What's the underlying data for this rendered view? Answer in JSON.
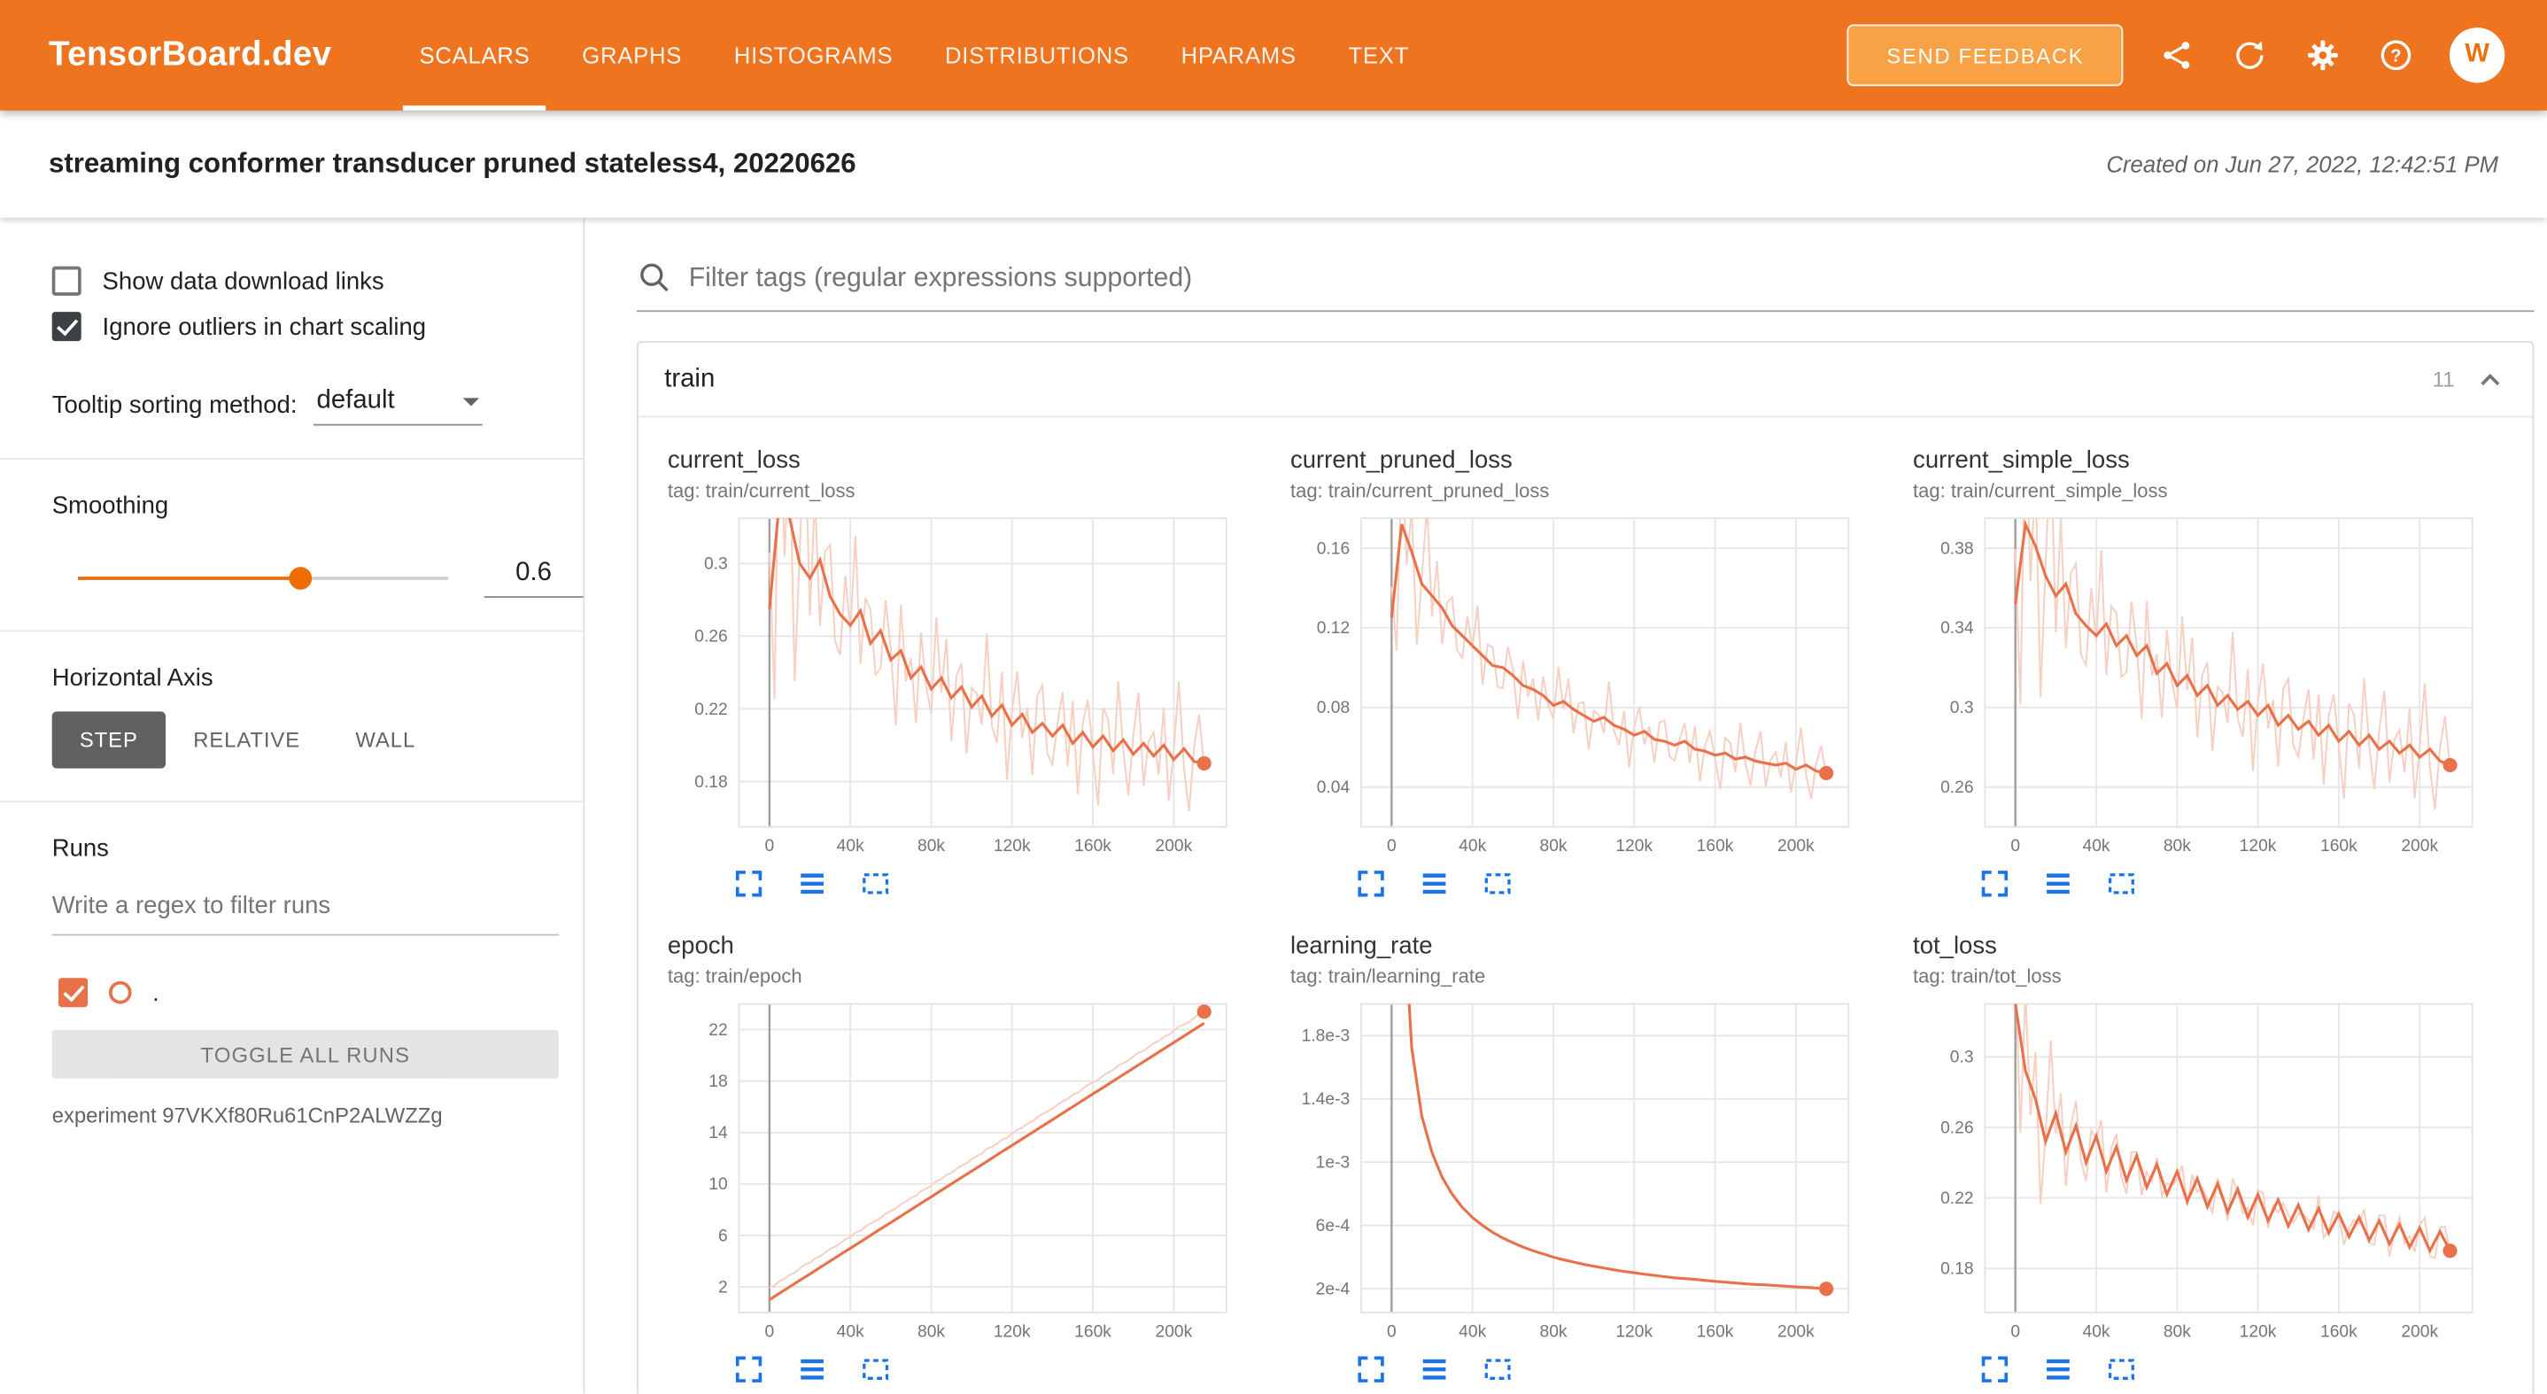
{
  "header": {
    "logo": "TensorBoard.dev",
    "nav": [
      {
        "label": "SCALARS",
        "active": true
      },
      {
        "label": "GRAPHS",
        "active": false
      },
      {
        "label": "HISTOGRAMS",
        "active": false
      },
      {
        "label": "DISTRIBUTIONS",
        "active": false
      },
      {
        "label": "HPARAMS",
        "active": false
      },
      {
        "label": "TEXT",
        "active": false
      }
    ],
    "send_feedback": "SEND FEEDBACK",
    "icons": [
      "share-icon",
      "refresh-icon",
      "settings-icon",
      "help-icon"
    ],
    "avatar_letter": "W"
  },
  "subheader": {
    "title": "streaming conformer transducer pruned stateless4, 20220626",
    "created": "Created on Jun 27, 2022, 12:42:51 PM"
  },
  "sidebar": {
    "show_download": {
      "label": "Show data download links",
      "checked": false
    },
    "ignore_outliers": {
      "label": "Ignore outliers in chart scaling",
      "checked": true
    },
    "tooltip_sorting": {
      "label": "Tooltip sorting method:",
      "value": "default"
    },
    "smoothing": {
      "label": "Smoothing",
      "value": "0.6",
      "fraction": 0.6
    },
    "horizontal_axis": {
      "label": "Horizontal Axis",
      "options": [
        "STEP",
        "RELATIVE",
        "WALL"
      ],
      "selected": "STEP"
    },
    "runs": {
      "label": "Runs",
      "filter_placeholder": "Write a regex to filter runs",
      "run_label": ".",
      "run_checked": true,
      "toggle_all": "TOGGLE ALL RUNS",
      "experiment": "experiment 97VKXf80Ru61CnP2ALWZZg"
    }
  },
  "main": {
    "filter_placeholder": "Filter tags (regular expressions supported)",
    "group": {
      "name": "train",
      "count": "11"
    }
  },
  "colors": {
    "header": "#ee7420",
    "feedback_button": "#f8a145",
    "run_main": "#e8714a",
    "run_light": "#f6d0c2",
    "icon_blue": "#1a73e8",
    "active_step_button": "#616161",
    "slider": "#ef6c00"
  },
  "chart_data_meta": {
    "noise": [
      0.3,
      -0.5,
      0.8,
      -0.2,
      0.6,
      -0.7,
      0.1,
      0.9,
      -0.4,
      0.5,
      -0.8,
      0.2,
      0.7,
      -0.3,
      -0.6,
      0.4,
      -0.1,
      0.8,
      -0.9,
      0.3,
      0.6,
      -0.4,
      -0.7,
      0.5,
      0.2,
      -0.8,
      0.9,
      -0.2,
      0.4,
      -0.6,
      0.7,
      -0.1,
      -0.5,
      0.8,
      -0.3,
      0.6,
      -0.9,
      0.2,
      0.5,
      -0.7,
      0.4,
      0.1,
      -0.6,
      0.9,
      -0.2,
      -0.4,
      0.7,
      -0.8,
      0.3,
      0.6,
      -0.5,
      0.2,
      -0.9,
      0.4,
      0.8,
      -0.3,
      -0.6,
      0.1,
      0.7,
      -0.4,
      0.9,
      -0.7,
      0.2,
      0.5,
      -0.1,
      -0.8,
      0.6,
      0.3,
      -0.5,
      0.8,
      -0.2,
      -0.6,
      0.4,
      0.7,
      -0.9,
      0.1,
      0.5,
      -0.3,
      0.8,
      -0.6,
      0.2,
      0.9,
      -0.4,
      -0.7,
      0.3,
      0.6,
      -0.1,
      -0.5,
      0.7,
      0.4
    ]
  },
  "chart_data": [
    {
      "type": "line",
      "title": "current_loss",
      "tag": "tag: train/current_loss",
      "x0": 0,
      "dx": 5000,
      "xlim": [
        -15000,
        226000
      ],
      "xticks": [
        {
          "v": 0,
          "label": "0"
        },
        {
          "v": 40000,
          "label": "40k"
        },
        {
          "v": 80000,
          "label": "80k"
        },
        {
          "v": 120000,
          "label": "120k"
        },
        {
          "v": 160000,
          "label": "160k"
        },
        {
          "v": 200000,
          "label": "200k"
        }
      ],
      "ylim": [
        0.155,
        0.325
      ],
      "yticks": [
        {
          "v": 0.18,
          "label": "0.18"
        },
        {
          "v": 0.22,
          "label": "0.22"
        },
        {
          "v": 0.26,
          "label": "0.26"
        },
        {
          "v": 0.3,
          "label": "0.3"
        }
      ],
      "values": [
        0.275,
        0.335,
        0.325,
        0.3,
        0.292,
        0.302,
        0.282,
        0.272,
        0.266,
        0.274,
        0.256,
        0.263,
        0.247,
        0.252,
        0.237,
        0.243,
        0.231,
        0.237,
        0.226,
        0.232,
        0.221,
        0.227,
        0.216,
        0.222,
        0.211,
        0.217,
        0.207,
        0.212,
        0.205,
        0.211,
        0.201,
        0.207,
        0.199,
        0.205,
        0.197,
        0.203,
        0.195,
        0.201,
        0.194,
        0.2,
        0.192,
        0.198,
        0.191,
        0.19
      ],
      "raw_amp": 0.026,
      "start_boost": 3,
      "raw_offset": 0,
      "end_dot": true
    },
    {
      "type": "line",
      "title": "current_pruned_loss",
      "tag": "tag: train/current_pruned_loss",
      "x0": 0,
      "dx": 5000,
      "xlim": [
        -15000,
        226000
      ],
      "xticks": [
        {
          "v": 0,
          "label": "0"
        },
        {
          "v": 40000,
          "label": "40k"
        },
        {
          "v": 80000,
          "label": "80k"
        },
        {
          "v": 120000,
          "label": "120k"
        },
        {
          "v": 160000,
          "label": "160k"
        },
        {
          "v": 200000,
          "label": "200k"
        }
      ],
      "ylim": [
        0.02,
        0.175
      ],
      "yticks": [
        {
          "v": 0.04,
          "label": "0.04"
        },
        {
          "v": 0.08,
          "label": "0.08"
        },
        {
          "v": 0.12,
          "label": "0.12"
        },
        {
          "v": 0.16,
          "label": "0.16"
        }
      ],
      "values": [
        0.125,
        0.172,
        0.158,
        0.142,
        0.136,
        0.13,
        0.121,
        0.116,
        0.111,
        0.106,
        0.101,
        0.1,
        0.096,
        0.091,
        0.089,
        0.086,
        0.081,
        0.083,
        0.079,
        0.076,
        0.073,
        0.075,
        0.071,
        0.069,
        0.066,
        0.068,
        0.064,
        0.063,
        0.061,
        0.063,
        0.059,
        0.058,
        0.056,
        0.057,
        0.054,
        0.055,
        0.053,
        0.052,
        0.051,
        0.052,
        0.049,
        0.051,
        0.048,
        0.047
      ],
      "raw_amp": 0.013,
      "start_boost": 3,
      "raw_offset": 0,
      "end_dot": true
    },
    {
      "type": "line",
      "title": "current_simple_loss",
      "tag": "tag: train/current_simple_loss",
      "x0": 0,
      "dx": 5000,
      "xlim": [
        -15000,
        226000
      ],
      "xticks": [
        {
          "v": 0,
          "label": "0"
        },
        {
          "v": 40000,
          "label": "40k"
        },
        {
          "v": 80000,
          "label": "80k"
        },
        {
          "v": 120000,
          "label": "120k"
        },
        {
          "v": 160000,
          "label": "160k"
        },
        {
          "v": 200000,
          "label": "200k"
        }
      ],
      "ylim": [
        0.24,
        0.395
      ],
      "yticks": [
        {
          "v": 0.26,
          "label": "0.26"
        },
        {
          "v": 0.3,
          "label": "0.3"
        },
        {
          "v": 0.34,
          "label": "0.34"
        },
        {
          "v": 0.38,
          "label": "0.38"
        }
      ],
      "values": [
        0.352,
        0.392,
        0.381,
        0.366,
        0.356,
        0.362,
        0.347,
        0.341,
        0.336,
        0.342,
        0.331,
        0.336,
        0.326,
        0.331,
        0.317,
        0.322,
        0.311,
        0.316,
        0.306,
        0.311,
        0.301,
        0.306,
        0.299,
        0.303,
        0.296,
        0.301,
        0.291,
        0.296,
        0.289,
        0.293,
        0.286,
        0.291,
        0.283,
        0.288,
        0.281,
        0.286,
        0.279,
        0.283,
        0.277,
        0.281,
        0.275,
        0.279,
        0.273,
        0.271
      ],
      "raw_amp": 0.023,
      "start_boost": 3,
      "raw_offset": 0,
      "end_dot": true
    },
    {
      "type": "line",
      "title": "epoch",
      "tag": "tag: train/epoch",
      "x0": 0,
      "dx": 5000,
      "xlim": [
        -15000,
        226000
      ],
      "xticks": [
        {
          "v": 0,
          "label": "0"
        },
        {
          "v": 40000,
          "label": "40k"
        },
        {
          "v": 80000,
          "label": "80k"
        },
        {
          "v": 120000,
          "label": "120k"
        },
        {
          "v": 160000,
          "label": "160k"
        },
        {
          "v": 200000,
          "label": "200k"
        }
      ],
      "ylim": [
        0,
        24
      ],
      "yticks": [
        {
          "v": 2,
          "label": "2"
        },
        {
          "v": 6,
          "label": "6"
        },
        {
          "v": 10,
          "label": "10"
        },
        {
          "v": 14,
          "label": "14"
        },
        {
          "v": 18,
          "label": "18"
        },
        {
          "v": 22,
          "label": "22"
        }
      ],
      "values": [
        1.0,
        1.5,
        2.0,
        2.5,
        3.0,
        3.5,
        4.0,
        4.5,
        5.0,
        5.5,
        6.0,
        6.5,
        7.0,
        7.5,
        8.0,
        8.5,
        9.0,
        9.5,
        10.0,
        10.5,
        11.0,
        11.5,
        12.0,
        12.5,
        13.0,
        13.5,
        14.0,
        14.5,
        15.0,
        15.5,
        16.0,
        16.5,
        17.0,
        17.5,
        18.0,
        18.5,
        19.0,
        19.5,
        20.0,
        20.5,
        21.0,
        21.5,
        22.0,
        22.5
      ],
      "raw_amp": 0.05,
      "start_boost": 0,
      "raw_offset": 0.9,
      "end_dot": true,
      "dot_on_raw": true
    },
    {
      "type": "line",
      "title": "learning_rate",
      "tag": "tag: train/learning_rate",
      "x0": 0,
      "dx": 5000,
      "xlim": [
        -15000,
        226000
      ],
      "xticks": [
        {
          "v": 0,
          "label": "0"
        },
        {
          "v": 40000,
          "label": "40k"
        },
        {
          "v": 80000,
          "label": "80k"
        },
        {
          "v": 120000,
          "label": "120k"
        },
        {
          "v": 160000,
          "label": "160k"
        },
        {
          "v": 200000,
          "label": "200k"
        }
      ],
      "ylim": [
        5e-05,
        0.002
      ],
      "yticks": [
        {
          "v": 0.0002,
          "label": "2e-4"
        },
        {
          "v": 0.0006,
          "label": "6e-4"
        },
        {
          "v": 0.001,
          "label": "1e-3"
        },
        {
          "v": 0.0014,
          "label": "1.4e-3"
        },
        {
          "v": 0.0018,
          "label": "1.8e-3"
        }
      ],
      "values": [
        0.004,
        0.00279,
        0.00172,
        0.00129,
        0.00106,
        0.000905,
        0.000797,
        0.000715,
        0.00065,
        0.0006,
        0.000557,
        0.000521,
        0.000491,
        0.000464,
        0.00044,
        0.00042,
        0.0004,
        0.000384,
        0.000369,
        0.000355,
        0.000343,
        0.000331,
        0.00032,
        0.00031,
        0.000301,
        0.000292,
        0.000285,
        0.000277,
        0.00027,
        0.000264,
        0.000259,
        0.000253,
        0.000247,
        0.000242,
        0.000237,
        0.000232,
        0.000228,
        0.000224,
        0.00022,
        0.000216,
        0.000212,
        0.000209,
        0.000205,
        0.0002
      ],
      "raw_amp": 0,
      "start_boost": 0,
      "raw_offset": 0,
      "end_dot": true
    },
    {
      "type": "line",
      "title": "tot_loss",
      "tag": "tag: train/tot_loss",
      "x0": 0,
      "dx": 5000,
      "xlim": [
        -15000,
        226000
      ],
      "xticks": [
        {
          "v": 0,
          "label": "0"
        },
        {
          "v": 40000,
          "label": "40k"
        },
        {
          "v": 80000,
          "label": "80k"
        },
        {
          "v": 120000,
          "label": "120k"
        },
        {
          "v": 160000,
          "label": "160k"
        },
        {
          "v": 200000,
          "label": "200k"
        }
      ],
      "ylim": [
        0.155,
        0.33
      ],
      "yticks": [
        {
          "v": 0.18,
          "label": "0.18"
        },
        {
          "v": 0.22,
          "label": "0.22"
        },
        {
          "v": 0.26,
          "label": "0.26"
        },
        {
          "v": 0.3,
          "label": "0.3"
        }
      ],
      "values": [
        0.33,
        0.292,
        0.276,
        0.252,
        0.268,
        0.246,
        0.261,
        0.24,
        0.255,
        0.235,
        0.249,
        0.23,
        0.244,
        0.226,
        0.239,
        0.222,
        0.235,
        0.218,
        0.231,
        0.215,
        0.228,
        0.212,
        0.225,
        0.209,
        0.222,
        0.207,
        0.219,
        0.204,
        0.216,
        0.202,
        0.214,
        0.2,
        0.211,
        0.198,
        0.209,
        0.196,
        0.207,
        0.194,
        0.205,
        0.192,
        0.203,
        0.19,
        0.201,
        0.19
      ],
      "raw_amp": 0.008,
      "start_boost": 8,
      "raw_offset": 0,
      "end_dot": true
    }
  ]
}
